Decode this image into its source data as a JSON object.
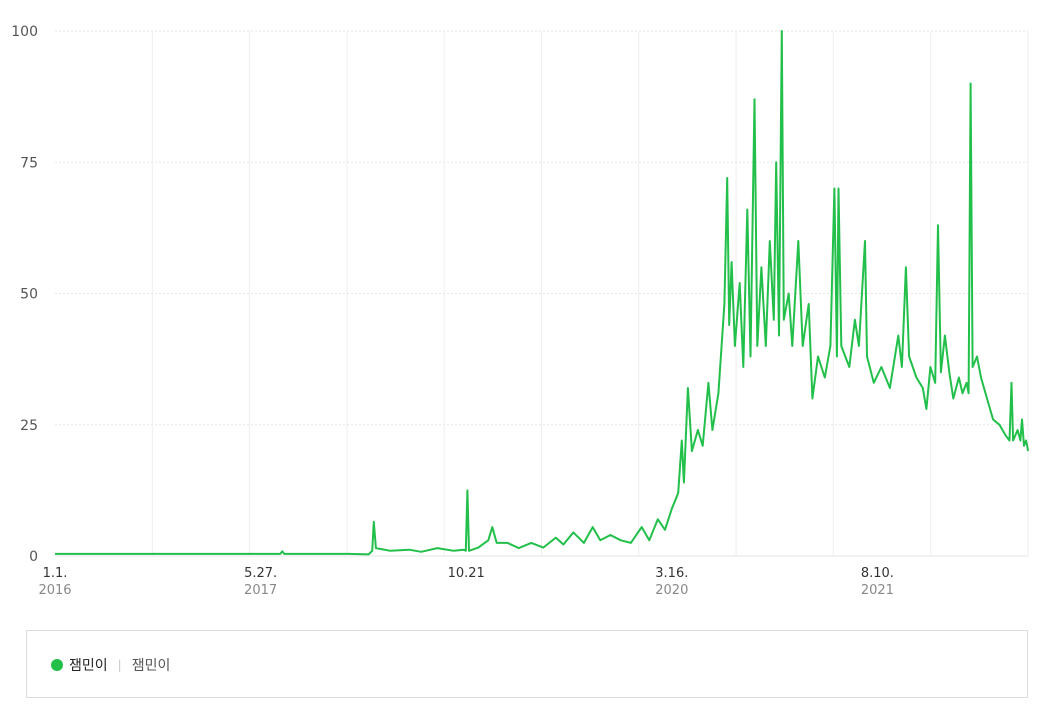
{
  "chart_data": {
    "type": "line",
    "title": "",
    "xlabel": "",
    "ylabel": "",
    "ylim": [
      0,
      100
    ],
    "yticks": [
      "0",
      "25",
      "50",
      "75",
      "100"
    ],
    "xticks": [
      {
        "date": "2016-01-01",
        "label": "1.1.",
        "year": "2016"
      },
      {
        "date": "2017-05-27",
        "label": "5.27.",
        "year": "2017"
      },
      {
        "date": "2018-10-21",
        "label": "10.21",
        "year": ""
      },
      {
        "date": "2020-03-16",
        "label": "3.16.",
        "year": "2020"
      },
      {
        "date": "2021-08-10",
        "label": "8.10.",
        "year": "2021"
      }
    ],
    "xrange": [
      "2016-01-01",
      "2022-08-20"
    ],
    "grid": true,
    "legend_position": "bottom",
    "series": [
      {
        "name": "잼민이",
        "color": "#22c04a",
        "points": [
          [
            "2016-01-01",
            0.4
          ],
          [
            "2016-06-01",
            0.4
          ],
          [
            "2016-12-01",
            0.4
          ],
          [
            "2017-05-01",
            0.4
          ],
          [
            "2017-07-15",
            0.4
          ],
          [
            "2017-07-20",
            0.9
          ],
          [
            "2017-07-25",
            0.4
          ],
          [
            "2018-01-01",
            0.4
          ],
          [
            "2018-02-20",
            0.3
          ],
          [
            "2018-03-01",
            1.0
          ],
          [
            "2018-03-05",
            6.5
          ],
          [
            "2018-03-10",
            1.5
          ],
          [
            "2018-04-15",
            1.0
          ],
          [
            "2018-06-01",
            1.2
          ],
          [
            "2018-07-01",
            0.8
          ],
          [
            "2018-08-10",
            1.5
          ],
          [
            "2018-09-20",
            1.0
          ],
          [
            "2018-10-15",
            1.2
          ],
          [
            "2018-10-20",
            1.0
          ],
          [
            "2018-10-24",
            12.5
          ],
          [
            "2018-10-28",
            1.0
          ],
          [
            "2018-11-20",
            1.6
          ],
          [
            "2018-12-15",
            3.0
          ],
          [
            "2018-12-25",
            5.5
          ],
          [
            "2019-01-05",
            2.5
          ],
          [
            "2019-02-01",
            2.5
          ],
          [
            "2019-03-01",
            1.5
          ],
          [
            "2019-04-01",
            2.5
          ],
          [
            "2019-05-01",
            1.6
          ],
          [
            "2019-06-01",
            3.5
          ],
          [
            "2019-06-20",
            2.2
          ],
          [
            "2019-07-15",
            4.5
          ],
          [
            "2019-08-10",
            2.5
          ],
          [
            "2019-09-01",
            5.5
          ],
          [
            "2019-09-20",
            3.0
          ],
          [
            "2019-10-15",
            4.0
          ],
          [
            "2019-11-10",
            3.0
          ],
          [
            "2019-12-05",
            2.5
          ],
          [
            "2020-01-01",
            5.5
          ],
          [
            "2020-01-20",
            3.0
          ],
          [
            "2020-02-10",
            7.0
          ],
          [
            "2020-02-28",
            5.0
          ],
          [
            "2020-03-16",
            9.0
          ],
          [
            "2020-04-01",
            12.0
          ],
          [
            "2020-04-10",
            22.0
          ],
          [
            "2020-04-15",
            14.0
          ],
          [
            "2020-04-25",
            32.0
          ],
          [
            "2020-05-05",
            20.0
          ],
          [
            "2020-05-20",
            24.0
          ],
          [
            "2020-06-01",
            21.0
          ],
          [
            "2020-06-15",
            33.0
          ],
          [
            "2020-06-25",
            24.0
          ],
          [
            "2020-07-10",
            31.0
          ],
          [
            "2020-07-25",
            48.0
          ],
          [
            "2020-08-01",
            72.0
          ],
          [
            "2020-08-06",
            44.0
          ],
          [
            "2020-08-12",
            56.0
          ],
          [
            "2020-08-20",
            40.0
          ],
          [
            "2020-09-01",
            52.0
          ],
          [
            "2020-09-10",
            36.0
          ],
          [
            "2020-09-20",
            66.0
          ],
          [
            "2020-09-28",
            38.0
          ],
          [
            "2020-10-08",
            87.0
          ],
          [
            "2020-10-15",
            40.0
          ],
          [
            "2020-10-25",
            55.0
          ],
          [
            "2020-11-05",
            40.0
          ],
          [
            "2020-11-15",
            60.0
          ],
          [
            "2020-11-25",
            45.0
          ],
          [
            "2020-12-01",
            75.0
          ],
          [
            "2020-12-08",
            42.0
          ],
          [
            "2020-12-15",
            100.0
          ],
          [
            "2020-12-20",
            45.0
          ],
          [
            "2021-01-01",
            50.0
          ],
          [
            "2021-01-10",
            40.0
          ],
          [
            "2021-01-25",
            60.0
          ],
          [
            "2021-02-05",
            40.0
          ],
          [
            "2021-02-20",
            48.0
          ],
          [
            "2021-03-01",
            30.0
          ],
          [
            "2021-03-15",
            38.0
          ],
          [
            "2021-04-01",
            34.0
          ],
          [
            "2021-04-15",
            40.0
          ],
          [
            "2021-04-25",
            70.0
          ],
          [
            "2021-05-01",
            38.0
          ],
          [
            "2021-05-05",
            70.0
          ],
          [
            "2021-05-12",
            40.0
          ],
          [
            "2021-06-01",
            36.0
          ],
          [
            "2021-06-15",
            45.0
          ],
          [
            "2021-06-25",
            40.0
          ],
          [
            "2021-07-10",
            60.0
          ],
          [
            "2021-07-15",
            38.0
          ],
          [
            "2021-08-01",
            33.0
          ],
          [
            "2021-08-20",
            36.0
          ],
          [
            "2021-09-10",
            32.0
          ],
          [
            "2021-10-01",
            42.0
          ],
          [
            "2021-10-10",
            36.0
          ],
          [
            "2021-10-20",
            55.0
          ],
          [
            "2021-10-28",
            38.0
          ],
          [
            "2021-11-15",
            34.0
          ],
          [
            "2021-12-01",
            32.0
          ],
          [
            "2021-12-10",
            28.0
          ],
          [
            "2021-12-20",
            36.0
          ],
          [
            "2022-01-01",
            33.0
          ],
          [
            "2022-01-08",
            63.0
          ],
          [
            "2022-01-15",
            35.0
          ],
          [
            "2022-01-25",
            42.0
          ],
          [
            "2022-02-05",
            35.0
          ],
          [
            "2022-02-15",
            30.0
          ],
          [
            "2022-03-01",
            34.0
          ],
          [
            "2022-03-10",
            31.0
          ],
          [
            "2022-03-20",
            33.0
          ],
          [
            "2022-03-25",
            31.0
          ],
          [
            "2022-03-30",
            90.0
          ],
          [
            "2022-04-04",
            36.0
          ],
          [
            "2022-04-15",
            38.0
          ],
          [
            "2022-04-25",
            34.0
          ],
          [
            "2022-05-10",
            30.0
          ],
          [
            "2022-05-25",
            26.0
          ],
          [
            "2022-06-10",
            25.0
          ],
          [
            "2022-06-25",
            23.0
          ],
          [
            "2022-07-05",
            22.0
          ],
          [
            "2022-07-10",
            33.0
          ],
          [
            "2022-07-14",
            22.0
          ],
          [
            "2022-07-25",
            24.0
          ],
          [
            "2022-08-01",
            22.0
          ],
          [
            "2022-08-05",
            26.0
          ],
          [
            "2022-08-10",
            21.0
          ],
          [
            "2022-08-15",
            22.0
          ],
          [
            "2022-08-18",
            21.0
          ],
          [
            "2022-08-20",
            20.0
          ]
        ]
      }
    ]
  },
  "legend": {
    "entries": [
      {
        "label": "잼민이",
        "sublabel": "잼민이",
        "color": "#22c04a"
      }
    ]
  }
}
